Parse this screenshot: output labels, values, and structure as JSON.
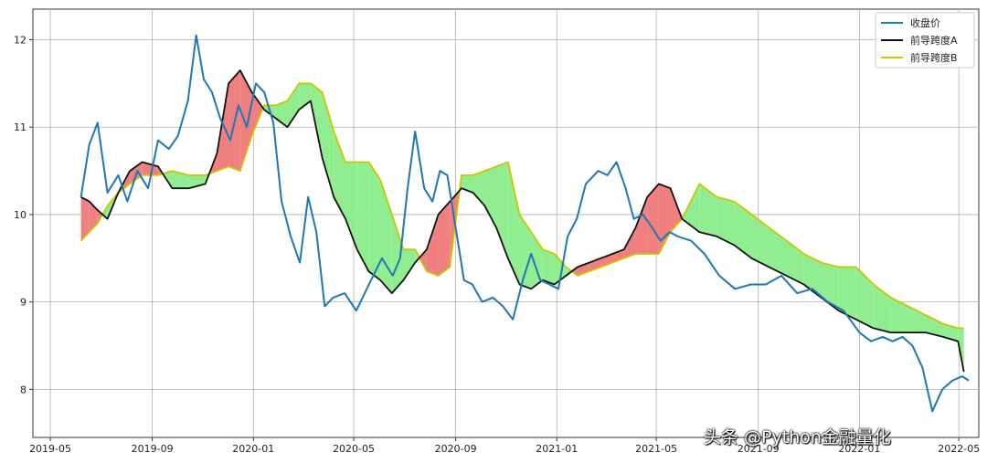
{
  "watermark": "头条 @Python金融量化",
  "chart_data": {
    "type": "line",
    "title": "",
    "xlabel": "",
    "ylabel": "",
    "ylim": [
      7.45,
      12.35
    ],
    "yticks": [
      8,
      9,
      10,
      11,
      12
    ],
    "xlim": [
      "2019-04-10",
      "2022-05-25"
    ],
    "xticks": [
      "2019-05",
      "2019-09",
      "2020-01",
      "2020-05",
      "2020-09",
      "2021-01",
      "2021-05",
      "2021-09",
      "2022-01",
      "2022-05"
    ],
    "grid": true,
    "legend_position": "top-right",
    "colors": {
      "close": "#1f77b4",
      "span_a": "#111111",
      "span_b": "#c8c800",
      "cloud_up": "#90ee90",
      "cloud_down": "#f08080"
    },
    "series": [
      {
        "name": "收盘价",
        "key": "close",
        "x": [
          "2019-06-07",
          "2019-06-17",
          "2019-06-27",
          "2019-07-09",
          "2019-07-22",
          "2019-08-02",
          "2019-08-14",
          "2019-08-27",
          "2019-09-08",
          "2019-09-21",
          "2019-10-02",
          "2019-10-14",
          "2019-10-24",
          "2019-11-02",
          "2019-11-12",
          "2019-11-22",
          "2019-12-04",
          "2019-12-14",
          "2019-12-24",
          "2020-01-04",
          "2020-01-14",
          "2020-01-25",
          "2020-02-04",
          "2020-02-15",
          "2020-02-26",
          "2020-03-07",
          "2020-03-17",
          "2020-03-27",
          "2020-04-06",
          "2020-04-20",
          "2020-05-04",
          "2020-05-22",
          "2020-06-04",
          "2020-06-17",
          "2020-06-26",
          "2020-07-05",
          "2020-07-14",
          "2020-07-25",
          "2020-08-04",
          "2020-08-13",
          "2020-08-22",
          "2020-09-01",
          "2020-09-11",
          "2020-09-21",
          "2020-10-03",
          "2020-10-16",
          "2020-10-28",
          "2020-11-09",
          "2020-11-21",
          "2020-12-01",
          "2020-12-12",
          "2020-12-23",
          "2021-01-03",
          "2021-01-14",
          "2021-01-25",
          "2021-02-05",
          "2021-02-20",
          "2021-03-03",
          "2021-03-14",
          "2021-03-25",
          "2021-04-04",
          "2021-04-15",
          "2021-04-26",
          "2021-05-06",
          "2021-05-17",
          "2021-05-27",
          "2021-06-12",
          "2021-06-28",
          "2021-07-16",
          "2021-08-04",
          "2021-08-23",
          "2021-09-10",
          "2021-09-29",
          "2021-10-18",
          "2021-11-05",
          "2021-11-24",
          "2021-12-13",
          "2022-01-01",
          "2022-01-15",
          "2022-01-29",
          "2022-02-10",
          "2022-02-22",
          "2022-03-06",
          "2022-03-18",
          "2022-03-30",
          "2022-04-11",
          "2022-04-23",
          "2022-05-05",
          "2022-05-13"
        ],
        "y": [
          10.2,
          10.8,
          11.05,
          10.25,
          10.45,
          10.15,
          10.5,
          10.3,
          10.85,
          10.75,
          10.9,
          11.3,
          12.05,
          11.55,
          11.4,
          11.1,
          10.85,
          11.25,
          11.0,
          11.5,
          11.4,
          11.05,
          10.15,
          9.75,
          9.45,
          10.2,
          9.8,
          8.95,
          9.05,
          9.1,
          8.9,
          9.25,
          9.5,
          9.3,
          9.5,
          10.3,
          10.95,
          10.3,
          10.15,
          10.5,
          10.45,
          9.85,
          9.25,
          9.2,
          9.0,
          9.05,
          8.95,
          8.8,
          9.25,
          9.55,
          9.25,
          9.2,
          9.15,
          9.75,
          9.95,
          10.35,
          10.5,
          10.45,
          10.6,
          10.3,
          9.95,
          10.0,
          9.85,
          9.7,
          9.8,
          9.75,
          9.7,
          9.55,
          9.3,
          9.15,
          9.2,
          9.2,
          9.3,
          9.1,
          9.15,
          9.0,
          8.9,
          8.65,
          8.55,
          8.6,
          8.55,
          8.6,
          8.5,
          8.25,
          7.75,
          8.0,
          8.1,
          8.15,
          8.1
        ]
      },
      {
        "name": "前导跨度A",
        "key": "span_a",
        "x": [
          "2019-06-07",
          "2019-06-17",
          "2019-06-27",
          "2019-07-09",
          "2019-07-22",
          "2019-08-05",
          "2019-08-20",
          "2019-09-08",
          "2019-09-25",
          "2019-10-15",
          "2019-11-04",
          "2019-11-18",
          "2019-12-02",
          "2019-12-16",
          "2019-12-30",
          "2020-01-14",
          "2020-01-28",
          "2020-02-11",
          "2020-02-25",
          "2020-03-10",
          "2020-03-24",
          "2020-04-07",
          "2020-04-21",
          "2020-05-05",
          "2020-05-19",
          "2020-06-02",
          "2020-06-16",
          "2020-06-30",
          "2020-07-14",
          "2020-07-28",
          "2020-08-11",
          "2020-08-25",
          "2020-09-08",
          "2020-09-22",
          "2020-10-06",
          "2020-10-20",
          "2020-11-03",
          "2020-11-17",
          "2020-12-01",
          "2020-12-15",
          "2020-12-29",
          "2021-01-12",
          "2021-01-26",
          "2021-02-09",
          "2021-02-23",
          "2021-03-09",
          "2021-03-23",
          "2021-04-06",
          "2021-04-20",
          "2021-05-04",
          "2021-05-18",
          "2021-06-01",
          "2021-06-22",
          "2021-07-13",
          "2021-08-03",
          "2021-08-24",
          "2021-09-14",
          "2021-10-05",
          "2021-10-26",
          "2021-11-16",
          "2021-12-07",
          "2021-12-28",
          "2022-01-18",
          "2022-02-08",
          "2022-03-01",
          "2022-03-22",
          "2022-04-12",
          "2022-04-30",
          "2022-05-07"
        ],
        "y": [
          10.2,
          10.15,
          10.05,
          9.95,
          10.25,
          10.5,
          10.6,
          10.55,
          10.3,
          10.3,
          10.35,
          10.7,
          11.5,
          11.65,
          11.4,
          11.2,
          11.1,
          11.0,
          11.2,
          11.3,
          10.65,
          10.2,
          9.95,
          9.6,
          9.35,
          9.25,
          9.1,
          9.25,
          9.45,
          9.6,
          10.0,
          10.15,
          10.3,
          10.25,
          10.1,
          9.85,
          9.5,
          9.2,
          9.15,
          9.25,
          9.2,
          9.3,
          9.4,
          9.45,
          9.5,
          9.55,
          9.6,
          9.85,
          10.2,
          10.35,
          10.3,
          9.95,
          9.8,
          9.75,
          9.65,
          9.5,
          9.4,
          9.3,
          9.2,
          9.05,
          8.9,
          8.8,
          8.7,
          8.65,
          8.65,
          8.65,
          8.6,
          8.55,
          8.2
        ]
      },
      {
        "name": "前导跨度B",
        "key": "span_b",
        "x": [
          "2019-06-07",
          "2019-06-17",
          "2019-06-27",
          "2019-07-09",
          "2019-07-22",
          "2019-08-05",
          "2019-08-20",
          "2019-09-08",
          "2019-09-25",
          "2019-10-15",
          "2019-11-04",
          "2019-11-18",
          "2019-12-02",
          "2019-12-16",
          "2019-12-30",
          "2020-01-14",
          "2020-01-28",
          "2020-02-11",
          "2020-02-25",
          "2020-03-10",
          "2020-03-24",
          "2020-04-07",
          "2020-04-21",
          "2020-05-05",
          "2020-05-19",
          "2020-06-02",
          "2020-06-16",
          "2020-06-30",
          "2020-07-14",
          "2020-07-28",
          "2020-08-11",
          "2020-08-25",
          "2020-09-08",
          "2020-09-22",
          "2020-10-06",
          "2020-10-20",
          "2020-11-03",
          "2020-11-17",
          "2020-12-01",
          "2020-12-15",
          "2020-12-29",
          "2021-01-12",
          "2021-01-26",
          "2021-02-09",
          "2021-02-23",
          "2021-03-09",
          "2021-03-23",
          "2021-04-06",
          "2021-04-20",
          "2021-05-04",
          "2021-05-18",
          "2021-06-01",
          "2021-06-22",
          "2021-07-13",
          "2021-08-03",
          "2021-08-24",
          "2021-09-14",
          "2021-10-05",
          "2021-10-26",
          "2021-11-16",
          "2021-12-07",
          "2021-12-28",
          "2022-01-18",
          "2022-02-08",
          "2022-03-01",
          "2022-03-22",
          "2022-04-12",
          "2022-04-30",
          "2022-05-07"
        ],
        "y": [
          9.7,
          9.8,
          9.9,
          10.1,
          10.25,
          10.35,
          10.45,
          10.45,
          10.5,
          10.45,
          10.45,
          10.5,
          10.55,
          10.5,
          10.9,
          11.25,
          11.25,
          11.3,
          11.5,
          11.5,
          11.4,
          10.95,
          10.6,
          10.6,
          10.6,
          10.4,
          10.0,
          9.6,
          9.6,
          9.35,
          9.3,
          9.4,
          10.45,
          10.45,
          10.5,
          10.55,
          10.6,
          10.0,
          9.8,
          9.6,
          9.55,
          9.4,
          9.3,
          9.35,
          9.4,
          9.45,
          9.5,
          9.55,
          9.55,
          9.55,
          9.8,
          9.95,
          10.35,
          10.2,
          10.15,
          10.0,
          9.85,
          9.7,
          9.55,
          9.45,
          9.4,
          9.4,
          9.2,
          9.05,
          8.95,
          8.85,
          8.75,
          8.7,
          8.7
        ]
      }
    ]
  }
}
